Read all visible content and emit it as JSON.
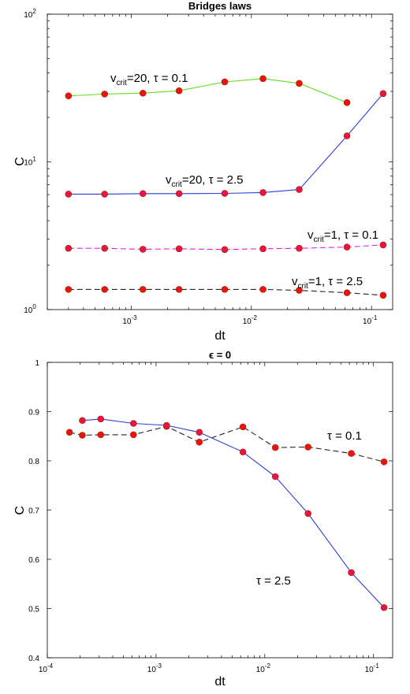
{
  "chart_data": [
    {
      "type": "line",
      "title": "Bridges laws",
      "xlabel": "dt",
      "ylabel": "C",
      "xscale": "log",
      "yscale": "log",
      "xlim": [
        0.0002,
        0.15
      ],
      "ylim": [
        1,
        100
      ],
      "grid": false,
      "x_ticks": [
        {
          "value": 0.001,
          "base": "10",
          "exp": "-3"
        },
        {
          "value": 0.01,
          "base": "10",
          "exp": "-2"
        },
        {
          "value": 0.1,
          "base": "10",
          "exp": "-1"
        }
      ],
      "y_ticks": [
        {
          "value": 1,
          "base": "10",
          "exp": "0"
        },
        {
          "value": 10,
          "base": "10",
          "exp": "1"
        },
        {
          "value": 100,
          "base": "10",
          "exp": "2"
        }
      ],
      "series": [
        {
          "color": "#66dd22",
          "dash": "solid",
          "marker_fill": "#ee1111",
          "x": [
            0.0003,
            0.0006,
            0.00125,
            0.0025,
            0.006,
            0.0125,
            0.025,
            0.0625,
            0.125
          ],
          "y": [
            28,
            28.8,
            29.2,
            30.3,
            34.8,
            36.6,
            34,
            25.2,
            null
          ]
        },
        {
          "color": "#2a3fd6",
          "dash": "solid",
          "marker_fill": "#ee1144",
          "x": [
            0.0003,
            0.0006,
            0.00125,
            0.0025,
            0.006,
            0.0125,
            0.025,
            0.0625,
            0.125
          ],
          "y": [
            6.05,
            6.05,
            6.1,
            6.1,
            6.12,
            6.2,
            6.5,
            15,
            29
          ]
        },
        {
          "color": "#dd22dd",
          "dash": "dashed",
          "marker_fill": "#ee1144",
          "x": [
            0.0003,
            0.0006,
            0.00125,
            0.0025,
            0.006,
            0.0125,
            0.025,
            0.0625,
            0.125
          ],
          "y": [
            2.6,
            2.6,
            2.56,
            2.58,
            2.55,
            2.58,
            2.6,
            2.65,
            2.74
          ]
        },
        {
          "color": "#222222",
          "dash": "dashed",
          "marker_fill": "#ee1111",
          "x": [
            0.0003,
            0.0006,
            0.00125,
            0.0025,
            0.006,
            0.0125,
            0.025,
            0.0625,
            0.125
          ],
          "y": [
            1.37,
            1.37,
            1.37,
            1.37,
            1.37,
            1.37,
            1.35,
            1.3,
            1.25
          ]
        }
      ],
      "annotations": [
        {
          "base": "v",
          "sub": "crit",
          "rest": "=20, τ = 0.1"
        },
        {
          "base": "v",
          "sub": "crit",
          "rest": "=20, τ = 2.5"
        },
        {
          "base": "v",
          "sub": "crit",
          "rest": "=1, τ = 0.1"
        },
        {
          "base": "v",
          "sub": "crit",
          "rest": "=1, τ = 2.5"
        }
      ]
    },
    {
      "type": "line",
      "title": "ϵ = 0",
      "xlabel": "dt",
      "ylabel": "C",
      "xscale": "log",
      "yscale": "linear",
      "xlim": [
        0.0001,
        0.15
      ],
      "ylim": [
        0.4,
        1
      ],
      "grid": false,
      "x_ticks": [
        {
          "value": 0.0001,
          "base": "10",
          "exp": "-4"
        },
        {
          "value": 0.001,
          "base": "10",
          "exp": "-3"
        },
        {
          "value": 0.01,
          "base": "10",
          "exp": "-2"
        },
        {
          "value": 0.1,
          "base": "10",
          "exp": "-1"
        }
      ],
      "y_ticks": [
        "0.4",
        "0.5",
        "0.6",
        "0.7",
        "0.8",
        "0.9",
        "1"
      ],
      "series": [
        {
          "color": "#222222",
          "dash": "dashed",
          "marker_fill": "#ee1111",
          "x": [
            0.00016,
            0.00021,
            0.00031,
            0.00062,
            0.00125,
            0.0025,
            0.0063,
            0.0125,
            0.025,
            0.0625,
            0.125
          ],
          "y": [
            0.858,
            0.852,
            0.853,
            0.853,
            0.87,
            0.838,
            0.869,
            0.827,
            0.828,
            0.815,
            0.798
          ]
        },
        {
          "color": "#2a3fd6",
          "dash": "solid",
          "marker_fill": "#ee1144",
          "x": [
            0.00021,
            0.00031,
            0.00062,
            0.00125,
            0.0025,
            0.0063,
            0.0125,
            0.025,
            0.0625,
            0.125
          ],
          "y": [
            0.882,
            0.885,
            0.876,
            0.872,
            0.858,
            0.818,
            0.768,
            0.693,
            0.573,
            0.502
          ]
        }
      ],
      "annotations": [
        {
          "text": "τ = 0.1"
        },
        {
          "text": "τ = 2.5"
        }
      ]
    }
  ]
}
